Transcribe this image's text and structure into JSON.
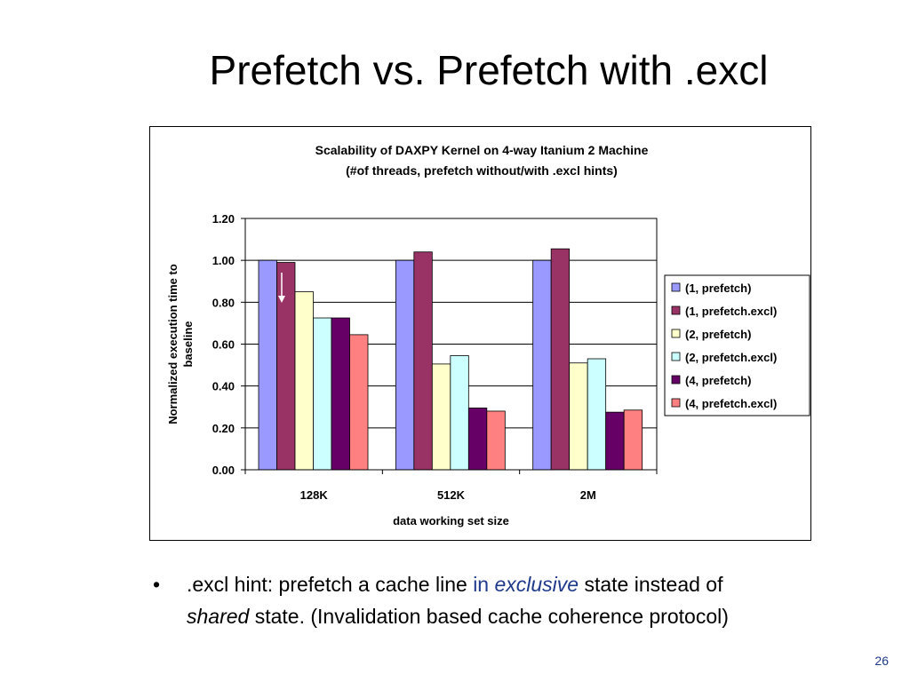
{
  "slide": {
    "title": "Prefetch vs. Prefetch with .excl",
    "bullet": {
      "dot": "•",
      "part1": ".excl hint: prefetch a cache line ",
      "part2": "in ",
      "part3": "exclusive",
      "part4": " state instead of",
      "part5": "shared",
      "part6": " state. (Invalidation based cache coherence protocol)"
    },
    "page_number": "26"
  },
  "chart_data": {
    "type": "bar",
    "title": "Scalability of DAXPY Kernel on 4-way Itanium 2 Machine",
    "subtitle": "(#of threads, prefetch without/with .excl hints)",
    "xlabel": "data working set size",
    "ylabel_lines": [
      "Normalized execution time to",
      "baseline"
    ],
    "categories": [
      "128K",
      "512K",
      "2M"
    ],
    "ylim": [
      0,
      1.2
    ],
    "yticks": [
      "0.00",
      "0.20",
      "0.40",
      "0.60",
      "0.80",
      "1.00",
      "1.20"
    ],
    "grid": true,
    "legend_position": "right",
    "series": [
      {
        "name": "(1, prefetch)",
        "color": "#9999ff",
        "values": [
          1.0,
          1.0,
          1.0
        ]
      },
      {
        "name": "(1, prefetch.excl)",
        "color": "#993366",
        "values": [
          0.99,
          1.04,
          1.055
        ]
      },
      {
        "name": "(2, prefetch)",
        "color": "#ffffcc",
        "values": [
          0.85,
          0.505,
          0.51
        ]
      },
      {
        "name": "(2, prefetch.excl)",
        "color": "#ccffff",
        "values": [
          0.725,
          0.545,
          0.53
        ]
      },
      {
        "name": "(4, prefetch)",
        "color": "#660066",
        "values": [
          0.725,
          0.295,
          0.275
        ]
      },
      {
        "name": "(4, prefetch.excl)",
        "color": "#ff8080",
        "values": [
          0.645,
          0.28,
          0.285
        ]
      }
    ]
  }
}
